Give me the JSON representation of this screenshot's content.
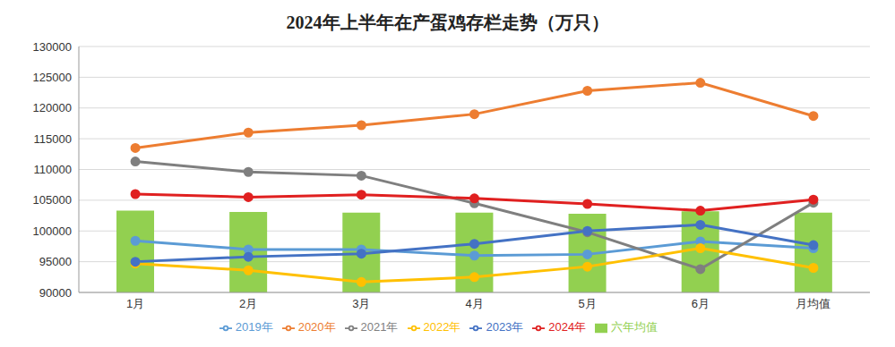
{
  "chart_data": {
    "type": "line",
    "title": "2024年上半年在产蛋鸡存栏走势（万只）",
    "categories": [
      "1月",
      "2月",
      "3月",
      "4月",
      "5月",
      "6月",
      "月均值"
    ],
    "ylim": [
      90000,
      130000
    ],
    "yticks": [
      90000,
      95000,
      100000,
      105000,
      110000,
      115000,
      120000,
      125000,
      130000
    ],
    "grid": true,
    "legend": "bottom",
    "series": [
      {
        "name": "六年均值",
        "type": "bar",
        "color": "#92d050",
        "values": [
          103300,
          103100,
          103000,
          103000,
          102800,
          103200,
          103000
        ]
      },
      {
        "name": "2019年",
        "type": "line",
        "marker": "circle",
        "color": "#5b9bd5",
        "values": [
          98400,
          97000,
          97000,
          96000,
          96200,
          98300,
          97200
        ]
      },
      {
        "name": "2020年",
        "type": "line",
        "marker": "circle",
        "color": "#ed7d31",
        "values": [
          113500,
          116000,
          117200,
          119000,
          122800,
          124100,
          118700
        ]
      },
      {
        "name": "2021年",
        "type": "line",
        "marker": "circle",
        "color": "#7f7f7f",
        "values": [
          111300,
          109600,
          109000,
          104500,
          99800,
          93800,
          104600
        ]
      },
      {
        "name": "2022年",
        "type": "line",
        "marker": "circle",
        "color": "#ffc000",
        "values": [
          94700,
          93600,
          91700,
          92500,
          94200,
          97200,
          94000
        ]
      },
      {
        "name": "2023年",
        "type": "line",
        "marker": "circle",
        "color": "#4472c4",
        "values": [
          95000,
          95800,
          96300,
          97900,
          100000,
          101000,
          97700
        ]
      },
      {
        "name": "2024年",
        "type": "line",
        "marker": "circle",
        "color": "#e02020",
        "values": [
          106000,
          105500,
          105900,
          105300,
          104400,
          103300,
          105100
        ]
      }
    ]
  }
}
